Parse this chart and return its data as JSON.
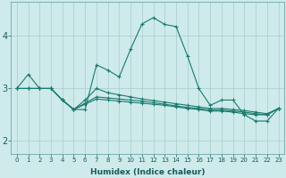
{
  "xlabel": "Humidex (Indice chaleur)",
  "bg_color": "#ceeaea",
  "grid_color": "#aacccc",
  "line_color": "#1a7a6e",
  "ylim": [
    1.75,
    4.65
  ],
  "xlim": [
    -0.5,
    23.5
  ],
  "yticks": [
    2,
    3,
    4
  ],
  "x_ticks": [
    0,
    1,
    2,
    3,
    4,
    5,
    6,
    7,
    8,
    9,
    10,
    11,
    12,
    13,
    14,
    15,
    16,
    17,
    18,
    19,
    20,
    21,
    22,
    23
  ],
  "series": [
    [
      3.0,
      3.27,
      3.0,
      3.0,
      2.78,
      2.6,
      2.6,
      3.45,
      3.35,
      3.22,
      3.75,
      4.23,
      4.35,
      4.22,
      4.18,
      3.62,
      3.0,
      2.68,
      2.78,
      2.78,
      2.5,
      2.38,
      2.38,
      2.62
    ],
    [
      3.0,
      3.0,
      3.0,
      3.0,
      2.78,
      2.6,
      2.78,
      3.0,
      2.92,
      2.88,
      2.84,
      2.8,
      2.77,
      2.74,
      2.71,
      2.68,
      2.65,
      2.62,
      2.62,
      2.6,
      2.58,
      2.55,
      2.52,
      2.62
    ],
    [
      3.0,
      3.0,
      3.0,
      3.0,
      2.78,
      2.6,
      2.72,
      2.84,
      2.82,
      2.8,
      2.78,
      2.76,
      2.73,
      2.7,
      2.67,
      2.64,
      2.62,
      2.59,
      2.59,
      2.57,
      2.55,
      2.52,
      2.5,
      2.62
    ],
    [
      3.0,
      3.0,
      3.0,
      3.0,
      2.78,
      2.6,
      2.7,
      2.8,
      2.78,
      2.76,
      2.74,
      2.72,
      2.7,
      2.68,
      2.65,
      2.62,
      2.6,
      2.57,
      2.57,
      2.55,
      2.52,
      2.5,
      2.5,
      2.62
    ]
  ]
}
